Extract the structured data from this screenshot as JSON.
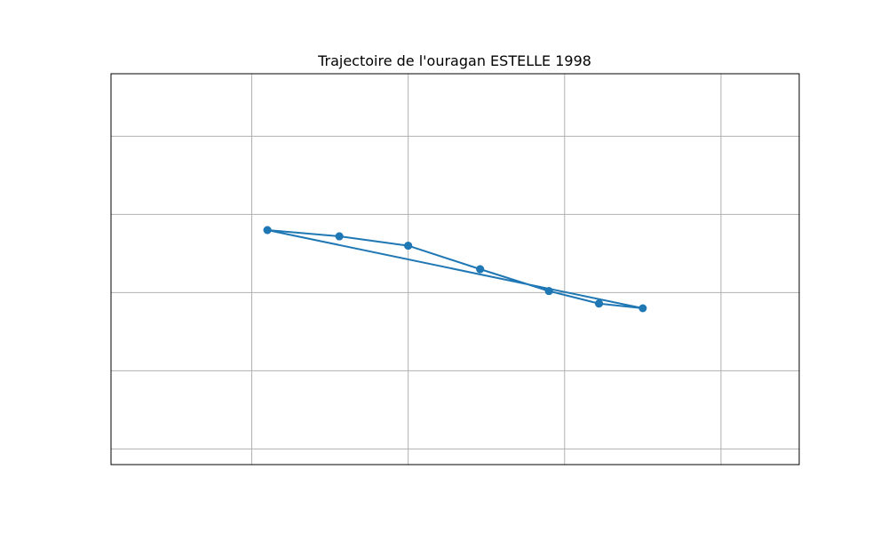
{
  "chart_data": {
    "type": "line",
    "title": "Trajectoire de l'ouragan ESTELLE 1998",
    "xlabel": "",
    "ylabel": "",
    "grid": true,
    "xlim": [
      -10,
      12
    ],
    "ylim": [
      -9.5,
      15.5
    ],
    "x_gridlines": [
      -5.5,
      -0.5,
      4.5,
      9.5
    ],
    "y_gridlines": [
      -8.5,
      -3.5,
      1.5,
      6.5,
      11.5
    ],
    "series": [
      {
        "name": "",
        "color": "#1f77b4",
        "x": [
          -5.0,
          -2.7,
          -0.5,
          1.8,
          4.0,
          5.6,
          7.0,
          5.6,
          4.0,
          1.8,
          -0.5,
          -2.7,
          -5.0
        ],
        "y": [
          5.5,
          5.1,
          4.5,
          3.0,
          1.6,
          0.8,
          0.5,
          0.8,
          1.6,
          3.0,
          4.5,
          5.1,
          5.5
        ],
        "path": [
          -5.0,
          -2.7,
          -0.5,
          1.8,
          4.0,
          5.6,
          7.0,
          -5.0
        ],
        "path_y": [
          5.5,
          5.1,
          4.5,
          3.0,
          1.6,
          0.8,
          0.5,
          5.5
        ]
      }
    ]
  },
  "colors": {
    "line": "#1f77b4",
    "grid": "#b0b0b0",
    "frame": "#000000"
  }
}
